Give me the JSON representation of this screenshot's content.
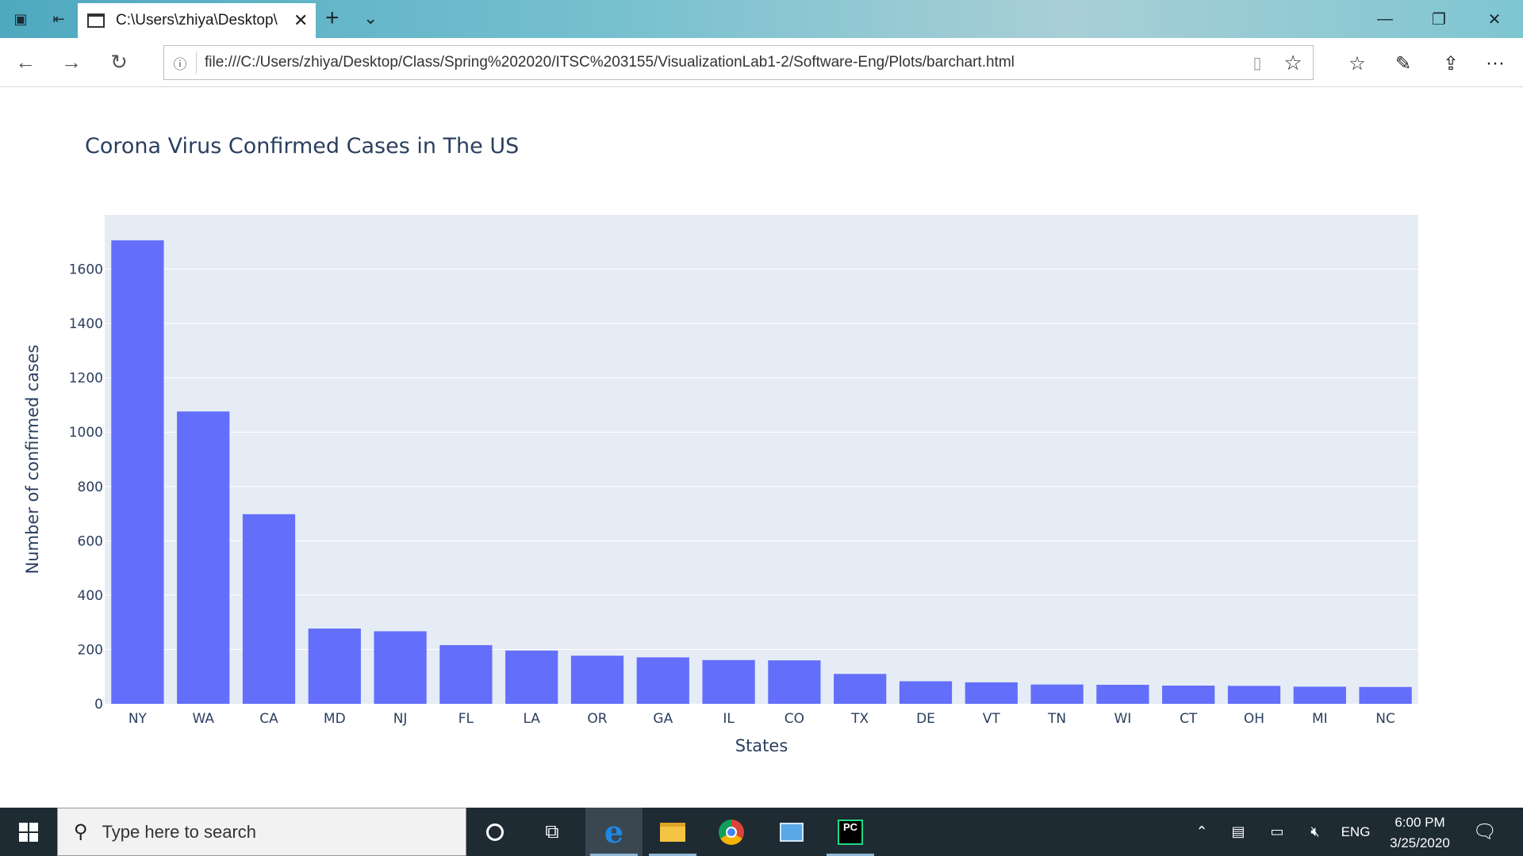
{
  "browser": {
    "tab_title": "C:\\Users\\zhiya\\Desktop\\",
    "address": "file:///C:/Users/zhiya/Desktop/Class/Spring%202020/ITSC%203155/VisualizationLab1-2/Software-Eng/Plots/barchart.html"
  },
  "chart_data": {
    "type": "bar",
    "title": "Corona Virus Confirmed Cases in The US",
    "xlabel": "States",
    "ylabel": "Number of confirmed cases",
    "categories": [
      "NY",
      "WA",
      "CA",
      "MD",
      "NJ",
      "FL",
      "LA",
      "OR",
      "GA",
      "IL",
      "CO",
      "TX",
      "DE",
      "VT",
      "TN",
      "WI",
      "CT",
      "OH",
      "MI",
      "NC"
    ],
    "values": [
      1706,
      1076,
      698,
      277,
      267,
      216,
      196,
      177,
      171,
      161,
      160,
      110,
      83,
      79,
      71,
      70,
      67,
      66,
      63,
      62
    ],
    "ylim": [
      0,
      1706
    ],
    "yticks": [
      0,
      200,
      400,
      600,
      800,
      1000,
      1200,
      1400,
      1600
    ],
    "bar_color": "#636efa",
    "plot_bg": "#e5ecf6",
    "grid": true
  },
  "taskbar": {
    "search_placeholder": "Type here to search",
    "language": "ENG",
    "time": "6:00 PM",
    "date": "3/25/2020"
  },
  "colors": {
    "titlebar": "#6fbccb",
    "taskbar": "#1f2b33",
    "text": "#2a3f5f"
  }
}
